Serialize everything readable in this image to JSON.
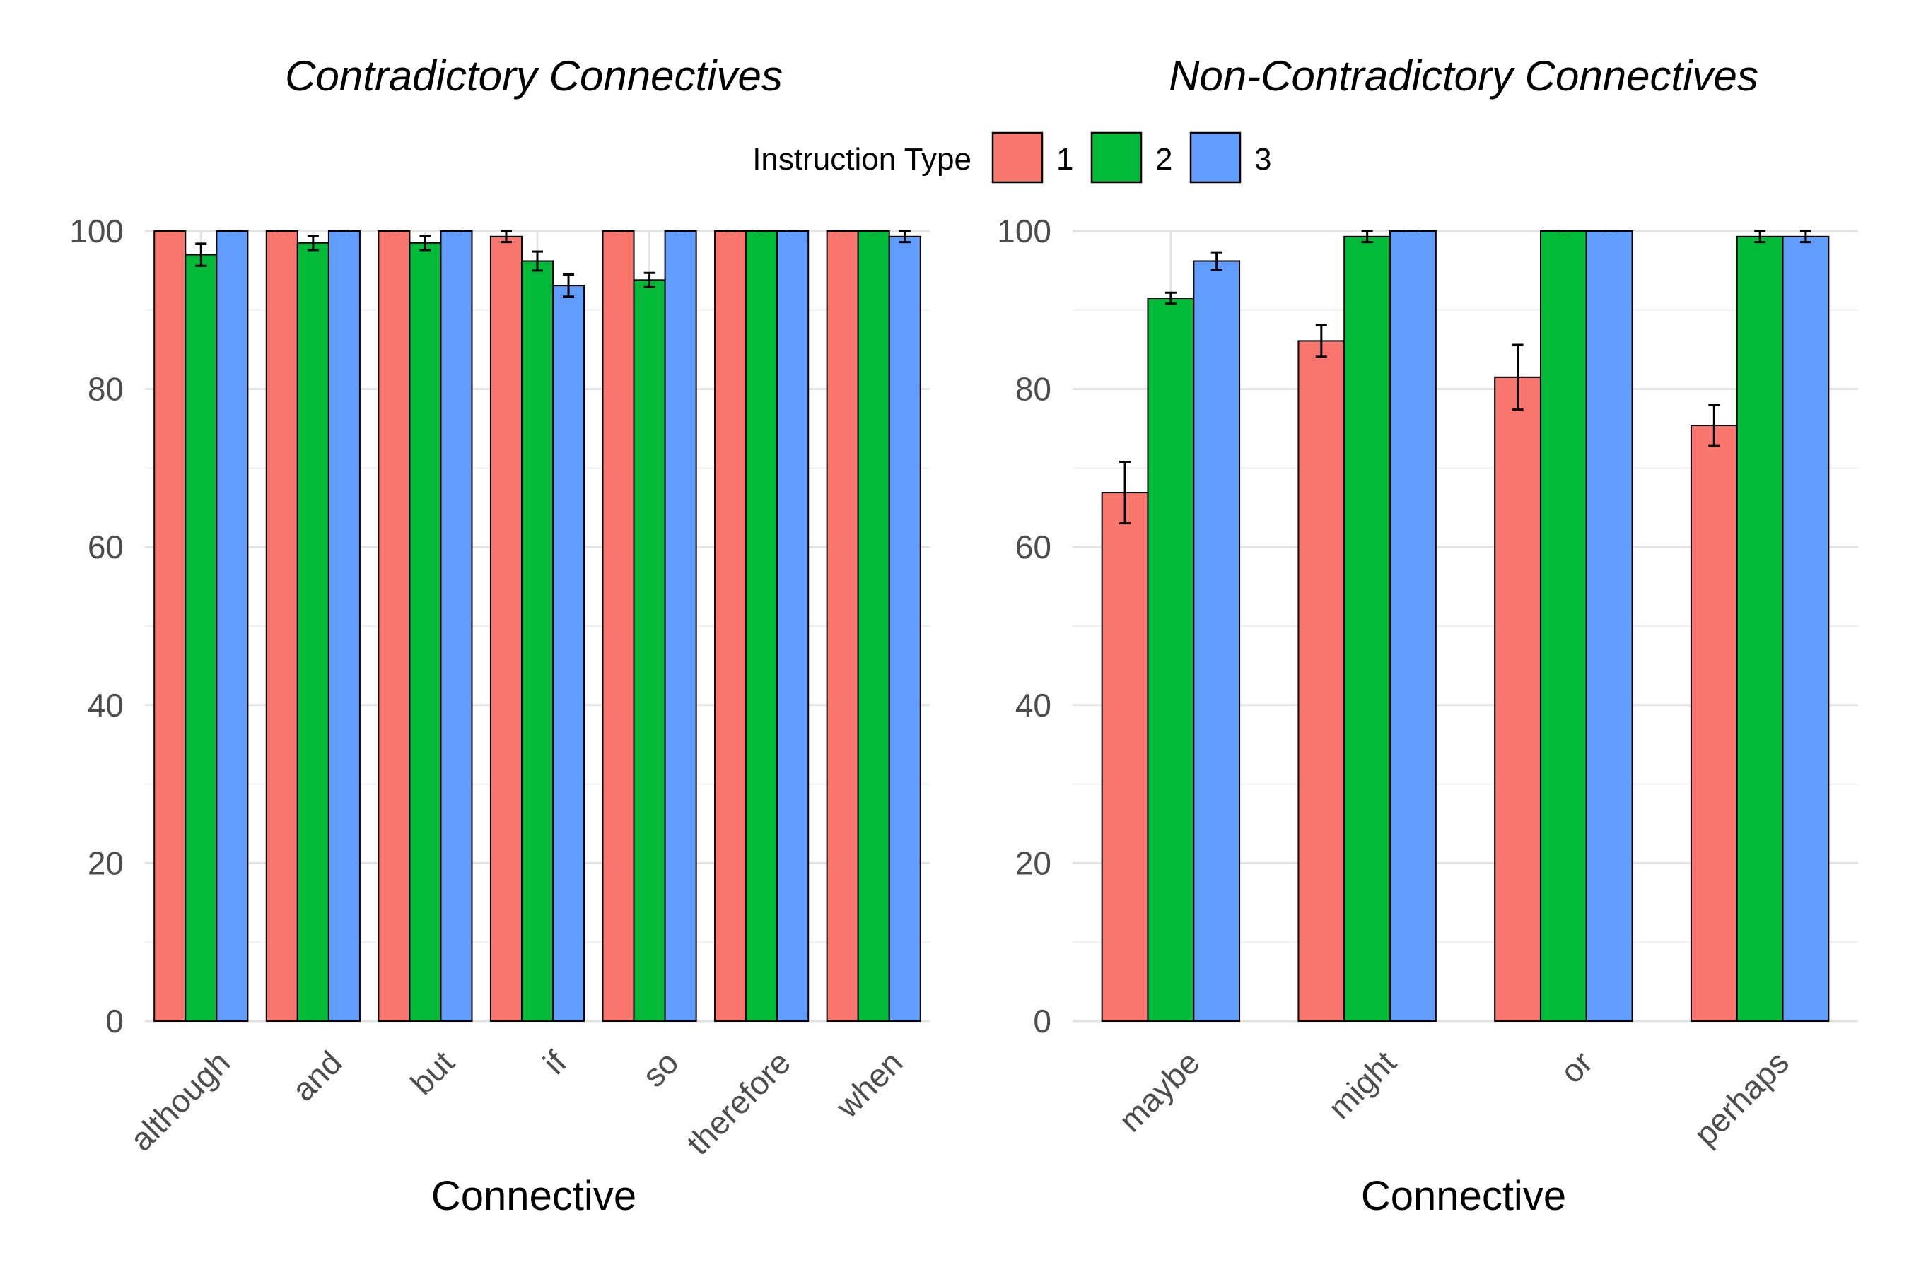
{
  "legend": {
    "title": "Instruction Type",
    "entries": [
      {
        "label": "1",
        "color": "#F8766D"
      },
      {
        "label": "2",
        "color": "#00BA38"
      },
      {
        "label": "3",
        "color": "#619CFF"
      }
    ]
  },
  "chart_data": [
    {
      "type": "bar",
      "title": "Contradictory Connectives",
      "xlabel": "Connective",
      "ylabel": "",
      "ylim": [
        0,
        100
      ],
      "yticks": [
        "0",
        "20",
        "40",
        "60",
        "80",
        "100"
      ],
      "grid": true,
      "categories": [
        "although",
        "and",
        "but",
        "if",
        "so",
        "therefore",
        "when"
      ],
      "series": [
        {
          "name": "1",
          "values": [
            100,
            100,
            100,
            99.3,
            100,
            100,
            100
          ],
          "errors": [
            0,
            0,
            0,
            0.7,
            0,
            0,
            0
          ]
        },
        {
          "name": "2",
          "values": [
            97.0,
            98.5,
            98.5,
            96.2,
            93.8,
            100,
            100
          ],
          "errors": [
            1.4,
            0.9,
            0.9,
            1.2,
            0.9,
            0,
            0
          ]
        },
        {
          "name": "3",
          "values": [
            100,
            100,
            100,
            93.1,
            100,
            100,
            99.3
          ],
          "errors": [
            0,
            0,
            0,
            1.4,
            0,
            0,
            0.7
          ]
        }
      ]
    },
    {
      "type": "bar",
      "title": "Non-Contradictory Connectives",
      "xlabel": "Connective",
      "ylabel": "",
      "ylim": [
        0,
        100
      ],
      "yticks": [
        "0",
        "20",
        "40",
        "60",
        "80",
        "100"
      ],
      "grid": true,
      "categories": [
        "maybe",
        "might",
        "or",
        "perhaps"
      ],
      "series": [
        {
          "name": "1",
          "values": [
            66.9,
            86.1,
            81.5,
            75.4
          ],
          "errors": [
            3.9,
            2.0,
            4.1,
            2.6
          ]
        },
        {
          "name": "2",
          "values": [
            91.5,
            99.3,
            100,
            99.3
          ],
          "errors": [
            0.7,
            0.7,
            0,
            0.7
          ]
        },
        {
          "name": "3",
          "values": [
            96.2,
            100,
            100,
            99.3
          ],
          "errors": [
            1.1,
            0,
            0,
            0.7
          ]
        }
      ]
    }
  ]
}
